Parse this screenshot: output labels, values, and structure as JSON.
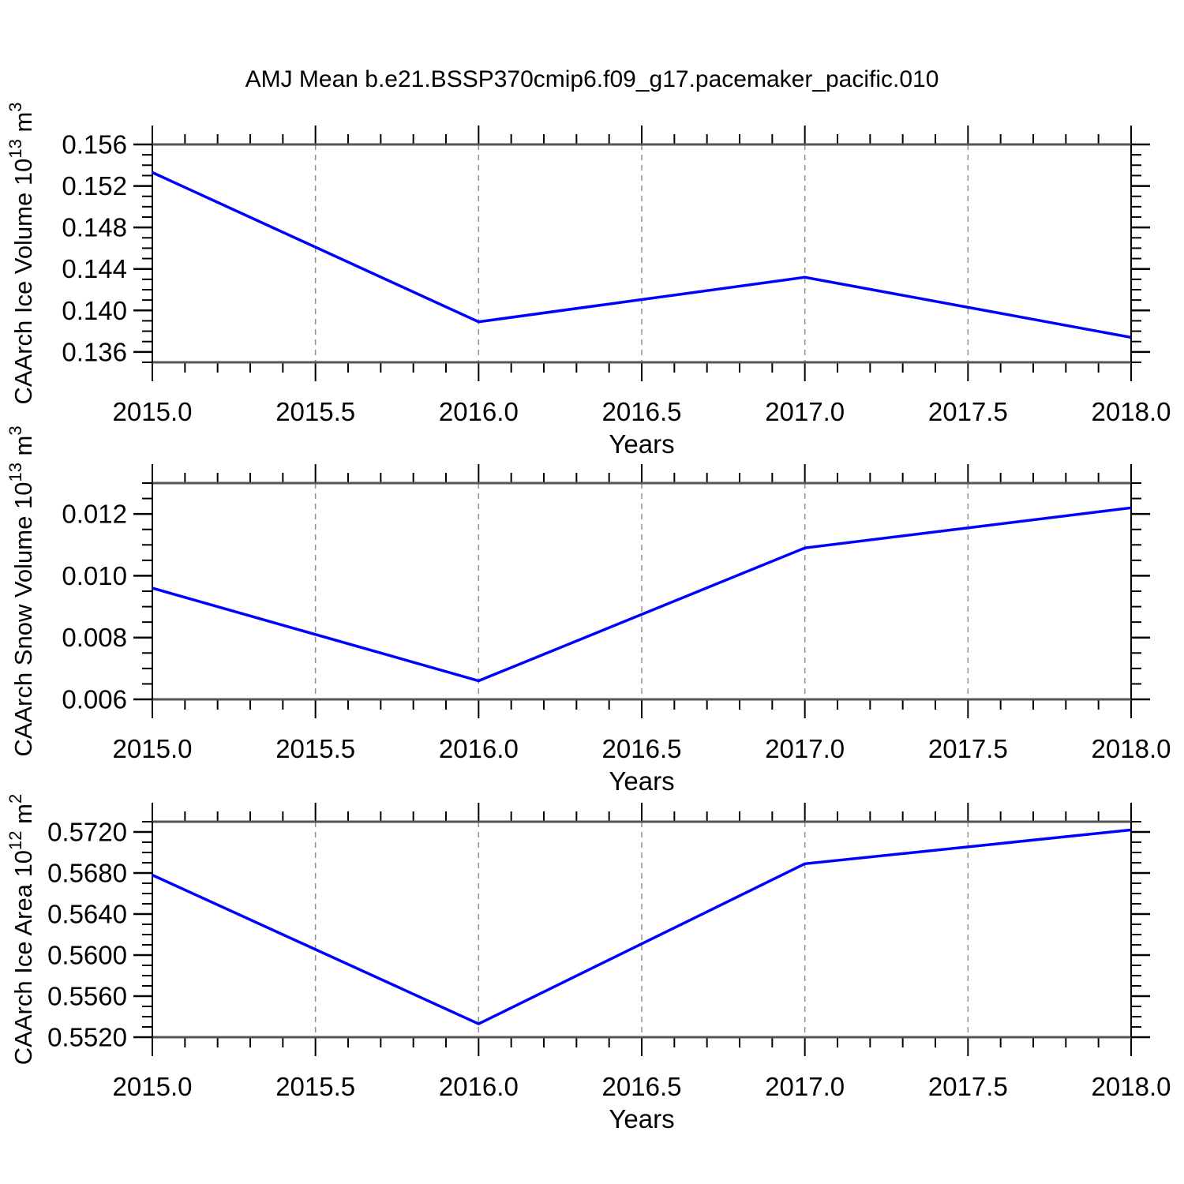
{
  "title": "AMJ Mean b.e21.BSSP370cmip6.f09_g17.pacemaker_pacific.010",
  "xlabel": "Years",
  "x_tick_labels": [
    "2015.0",
    "2015.5",
    "2016.0",
    "2016.5",
    "2017.0",
    "2017.5",
    "2018.0"
  ],
  "colors": {
    "line": "#0000ff",
    "axis": "#000000",
    "axis_horizontal": "#555555",
    "grid": "#909090",
    "text": "#000000",
    "background": "#ffffff"
  },
  "chart_data": [
    {
      "type": "line",
      "name": "caarch-ice-volume",
      "ylabel_text": "CAArch Ice Volume 10^13 m^3",
      "ylabel_parts": [
        {
          "t": "CAArch Ice Volume 10"
        },
        {
          "t": "13",
          "sup": true
        },
        {
          "t": " m"
        },
        {
          "t": "3",
          "sup": true
        }
      ],
      "x": [
        2015.0,
        2016.0,
        2017.0,
        2018.0
      ],
      "values": [
        0.1533,
        0.1389,
        0.1432,
        0.1374
      ],
      "xlim": [
        2015.0,
        2018.0
      ],
      "ylim": [
        0.135,
        0.156
      ],
      "yticks": [
        0.136,
        0.14,
        0.144,
        0.148,
        0.152,
        0.156
      ],
      "ytick_labels": [
        "0.136",
        "0.140",
        "0.144",
        "0.148",
        "0.152",
        "0.156"
      ],
      "y_minor_step": 0.001,
      "x_minor_step": 0.1,
      "x_major_step": 0.5,
      "xgrid": [
        2015.5,
        2016.0,
        2016.5,
        2017.0,
        2017.5
      ],
      "grid_style": "dashed",
      "legend": "none"
    },
    {
      "type": "line",
      "name": "caarch-snow-volume",
      "ylabel_text": "CAArch Snow Volume 10^13 m^3",
      "ylabel_parts": [
        {
          "t": "CAArch Snow Volume 10"
        },
        {
          "t": "13",
          "sup": true
        },
        {
          "t": " m"
        },
        {
          "t": "3",
          "sup": true
        }
      ],
      "x": [
        2015.0,
        2016.0,
        2017.0,
        2018.0
      ],
      "values": [
        0.0096,
        0.0066,
        0.0109,
        0.0122
      ],
      "xlim": [
        2015.0,
        2018.0
      ],
      "ylim": [
        0.006,
        0.013
      ],
      "yticks": [
        0.006,
        0.008,
        0.01,
        0.012
      ],
      "ytick_labels": [
        "0.006",
        "0.008",
        "0.010",
        "0.012"
      ],
      "y_minor_step": 0.0005,
      "x_minor_step": 0.1,
      "x_major_step": 0.5,
      "xgrid": [
        2015.5,
        2016.0,
        2016.5,
        2017.0,
        2017.5
      ],
      "grid_style": "dashed",
      "legend": "none"
    },
    {
      "type": "line",
      "name": "caarch-ice-area",
      "ylabel_text": "CAArch Ice Area 10^12 m^2",
      "ylabel_parts": [
        {
          "t": "CAArch Ice Area 10"
        },
        {
          "t": "12",
          "sup": true
        },
        {
          "t": " m"
        },
        {
          "t": "2",
          "sup": true
        }
      ],
      "x": [
        2015.0,
        2016.0,
        2017.0,
        2018.0
      ],
      "values": [
        0.5678,
        0.5533,
        0.5689,
        0.5722
      ],
      "xlim": [
        2015.0,
        2018.0
      ],
      "ylim": [
        0.552,
        0.573
      ],
      "yticks": [
        0.552,
        0.556,
        0.56,
        0.564,
        0.568,
        0.572
      ],
      "ytick_labels": [
        "0.5520",
        "0.5560",
        "0.5600",
        "0.5640",
        "0.5680",
        "0.5720"
      ],
      "y_minor_step": 0.001,
      "x_minor_step": 0.1,
      "x_major_step": 0.5,
      "xgrid": [
        2015.5,
        2016.0,
        2016.5,
        2017.0,
        2017.5
      ],
      "grid_style": "dashed",
      "legend": "none"
    }
  ]
}
